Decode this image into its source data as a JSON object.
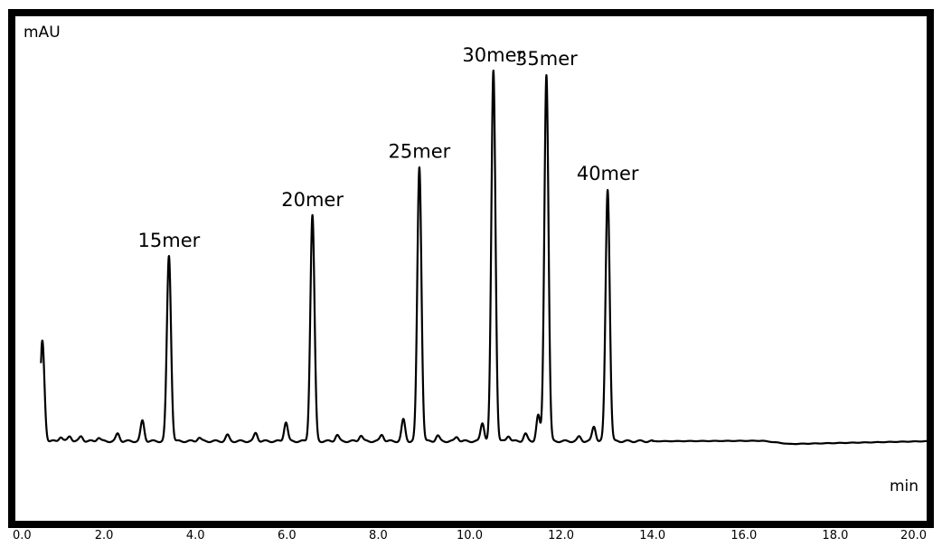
{
  "chart_data": {
    "type": "line",
    "ylabel": "mAU",
    "xlabel": "min",
    "xlim": [
      0,
      20
    ],
    "x_ticks": [
      "0.0",
      "2.0",
      "4.0",
      "6.0",
      "8.0",
      "10.0",
      "12.0",
      "14.0",
      "16.0",
      "18.0",
      "20.0"
    ],
    "y_axis": {
      "baseline": 0,
      "ylim": [
        -6,
        100
      ],
      "tick_labels_shown": false
    },
    "grid": false,
    "line_color": "#000000",
    "frame_color": "#000000",
    "peaks": [
      {
        "label": "",
        "time": 0.65,
        "height": 27
      },
      {
        "label": "15mer",
        "time": 3.42,
        "height": 50
      },
      {
        "label": "20mer",
        "time": 6.56,
        "height": 61
      },
      {
        "label": "25mer",
        "time": 8.9,
        "height": 74
      },
      {
        "label": "30mer",
        "time": 10.52,
        "height": 100
      },
      {
        "label": "35mer",
        "time": 11.68,
        "height": 99
      },
      {
        "label": "40mer",
        "time": 13.02,
        "height": 68
      }
    ],
    "minor_peaks": [
      {
        "time": 1.05,
        "height": 1.2
      },
      {
        "time": 1.25,
        "height": 1.4
      },
      {
        "time": 1.5,
        "height": 1.3
      },
      {
        "time": 1.88,
        "height": 1.0
      },
      {
        "time": 2.3,
        "height": 2.0
      },
      {
        "time": 2.84,
        "height": 5.5
      },
      {
        "time": 4.08,
        "height": 1.0
      },
      {
        "time": 4.7,
        "height": 1.6
      },
      {
        "time": 5.32,
        "height": 2.2
      },
      {
        "time": 5.98,
        "height": 5.2
      },
      {
        "time": 7.1,
        "height": 1.7
      },
      {
        "time": 7.62,
        "height": 1.6
      },
      {
        "time": 8.08,
        "height": 1.8
      },
      {
        "time": 8.55,
        "height": 5.8
      },
      {
        "time": 9.3,
        "height": 1.5
      },
      {
        "time": 9.72,
        "height": 1.2
      },
      {
        "time": 10.28,
        "height": 5.0
      },
      {
        "time": 10.85,
        "height": 1.5
      },
      {
        "time": 11.22,
        "height": 2.0
      },
      {
        "time": 11.5,
        "height": 7.0
      },
      {
        "time": 12.4,
        "height": 1.2
      },
      {
        "time": 12.72,
        "height": 4.0
      }
    ]
  }
}
